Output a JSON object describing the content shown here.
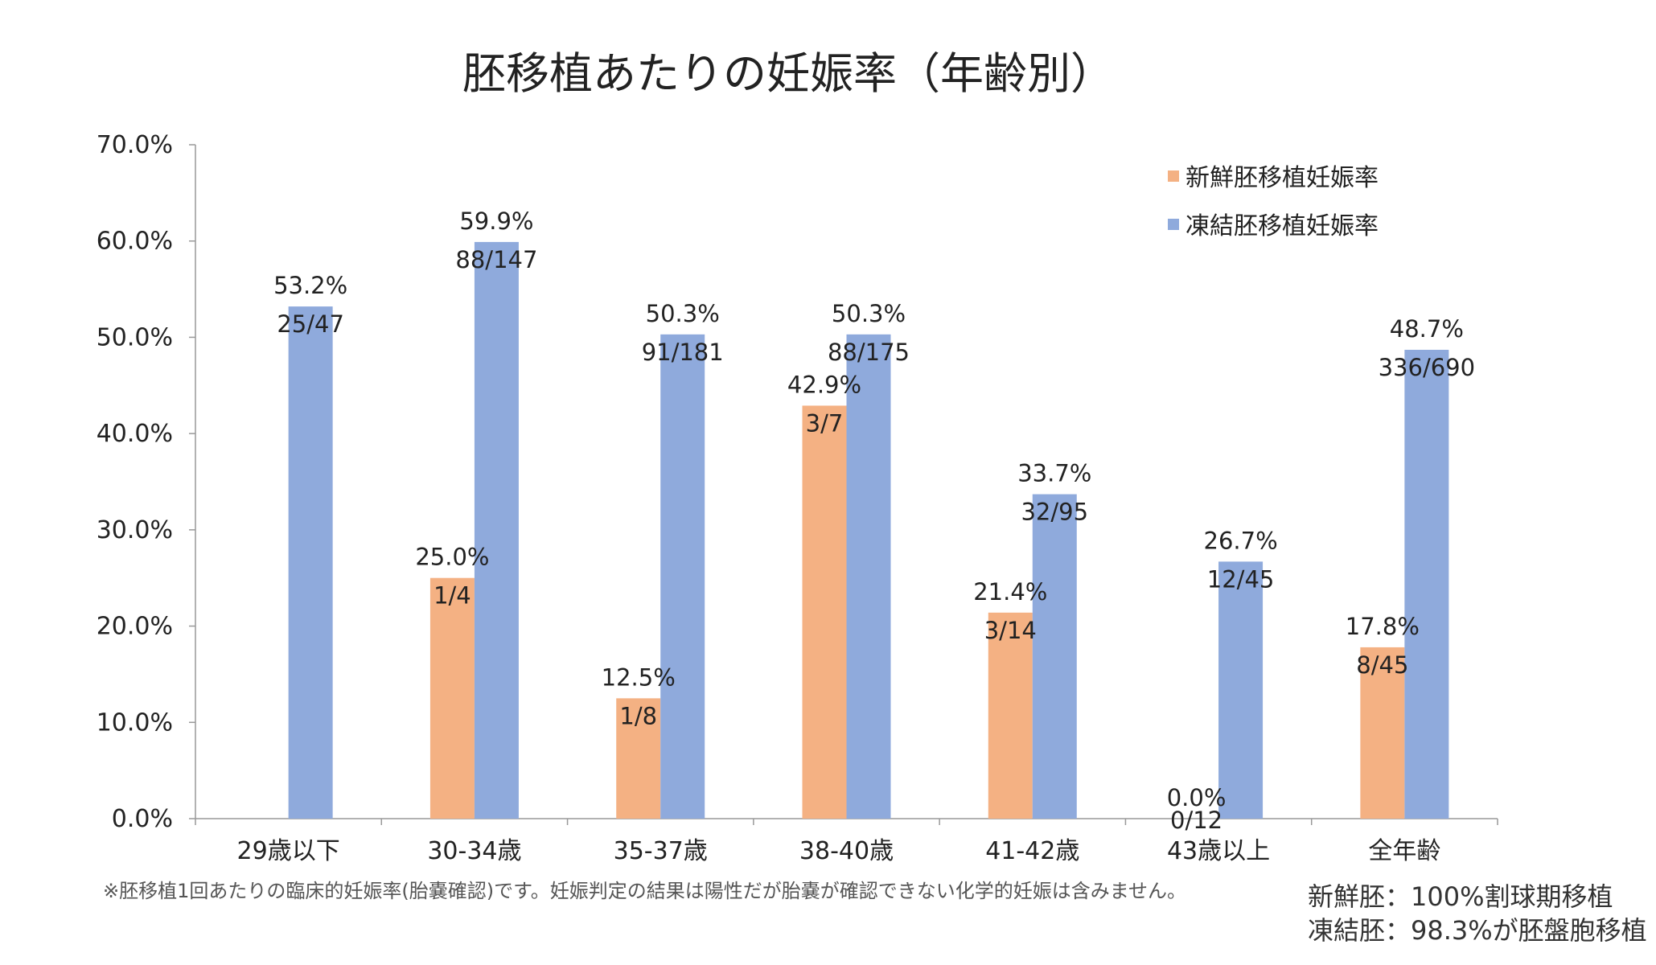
{
  "chart_data": {
    "type": "bar",
    "title": "胚移植あたりの妊娠率（年齢別）",
    "xlabel": "",
    "ylabel": "",
    "ylim": [
      0,
      70
    ],
    "yticks": [
      "0.0%",
      "10.0%",
      "20.0%",
      "30.0%",
      "40.0%",
      "50.0%",
      "60.0%",
      "70.0%"
    ],
    "categories": [
      "29歳以下",
      "30-34歳",
      "35-37歳",
      "38-40歳",
      "41-42歳",
      "43歳以上",
      "全年齢"
    ],
    "series": [
      {
        "name": "新鮮胚移植妊娠率",
        "color": "#F4B183",
        "values": [
          null,
          25.0,
          12.5,
          42.9,
          21.4,
          0.0,
          17.8
        ],
        "pct_labels": [
          null,
          "25.0%",
          "12.5%",
          "42.9%",
          "21.4%",
          "0.0%",
          "17.8%"
        ],
        "count_labels": [
          null,
          "1/4",
          "1/8",
          "3/7",
          "3/14",
          "0/12",
          "8/45"
        ]
      },
      {
        "name": "凍結胚移植妊娠率",
        "color": "#8FAADC",
        "values": [
          53.2,
          59.9,
          50.3,
          50.3,
          33.7,
          26.7,
          48.7
        ],
        "pct_labels": [
          "53.2%",
          "59.9%",
          "50.3%",
          "50.3%",
          "33.7%",
          "26.7%",
          "48.7%"
        ],
        "count_labels": [
          "25/47",
          "88/147",
          "91/181",
          "88/175",
          "32/95",
          "12/45",
          "336/690"
        ]
      }
    ],
    "legend_position": "top-right"
  },
  "footnote": "※胚移植1回あたりの臨床的妊娠率(胎嚢確認)です。妊娠判定の結果は陽性だが胎嚢が確認できない化学的妊娠は含みません。",
  "notes": {
    "fresh": "新鮮胚：100%割球期移植",
    "frozen": "凍結胚：98.3%が胚盤胞移植"
  }
}
